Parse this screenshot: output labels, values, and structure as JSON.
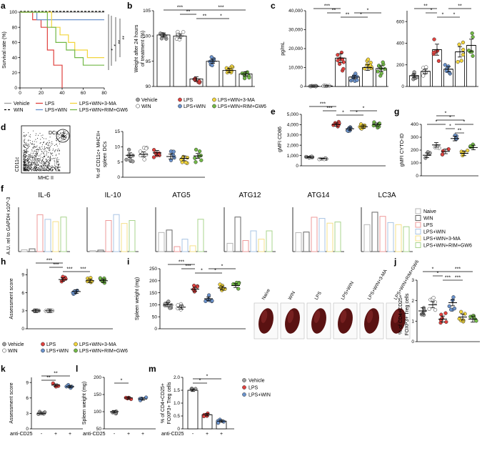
{
  "colors": {
    "vehicle": "#9e9e9e",
    "win": "#ffffff",
    "lps": "#e0413e",
    "lps_win": "#6a92cc",
    "lps_win_3ma": "#f2d53c",
    "lps_win_rim_gw6": "#72b846"
  },
  "panel_labels": [
    "a",
    "b",
    "c",
    "d",
    "e",
    "f",
    "g",
    "h",
    "i",
    "j",
    "k",
    "l",
    "m"
  ],
  "chart_data": [
    {
      "panel": "a",
      "type": "line",
      "ylabel": "Survival rate (%)",
      "yticks": [
        "0",
        "20",
        "40",
        "60",
        "80",
        "100"
      ],
      "xticks": [
        "0",
        "20",
        "40",
        "60",
        "80"
      ],
      "ylim": [
        0,
        100
      ],
      "xlim": [
        0,
        80
      ],
      "series": [
        {
          "name": "Vehicle",
          "x": [
            0,
            80
          ],
          "y": [
            100,
            100
          ]
        },
        {
          "name": "WIN",
          "x": [
            0,
            80
          ],
          "y": [
            100,
            100
          ]
        },
        {
          "name": "LPS",
          "x": [
            0,
            12,
            12,
            20,
            20,
            26,
            26,
            32,
            32,
            40,
            40
          ],
          "y": [
            100,
            100,
            90,
            90,
            80,
            80,
            50,
            50,
            30,
            30,
            0
          ]
        },
        {
          "name": "LPS+WIN",
          "x": [
            0,
            16,
            16,
            80
          ],
          "y": [
            100,
            100,
            90,
            90
          ]
        },
        {
          "name": "LPS+WIN+3-MA",
          "x": [
            0,
            30,
            30,
            38,
            38,
            46,
            46,
            52,
            52,
            64,
            64,
            80
          ],
          "y": [
            100,
            100,
            80,
            80,
            70,
            70,
            60,
            60,
            50,
            50,
            40,
            40
          ]
        },
        {
          "name": "LPS+WIN+RIM+GW6",
          "x": [
            0,
            26,
            26,
            34,
            34,
            44,
            44,
            52,
            52,
            60,
            60,
            80
          ],
          "y": [
            100,
            100,
            80,
            80,
            60,
            60,
            50,
            50,
            40,
            40,
            30,
            30
          ]
        }
      ],
      "significance": [
        "*",
        "*",
        "**",
        "**"
      ],
      "legend": [
        "Vehicle",
        "WIN",
        "LPS",
        "LPS+WIN",
        "LPS+WIN+3-MA",
        "LPS+WIN+RIM+GW6"
      ]
    },
    {
      "panel": "b",
      "type": "bar",
      "ylabel": "Weight after 24 hours of treatment (%)",
      "ylim": [
        90,
        105
      ],
      "yticks": [
        "90",
        "95",
        "100",
        "105"
      ],
      "categories": [
        "Vehicle",
        "WIN",
        "LPS",
        "LPS+WIN",
        "LPS+WIN+3-MA",
        "LPS+WIN+RIM+GW6"
      ],
      "values": [
        100.2,
        100.0,
        91.5,
        95.0,
        93.2,
        92.5
      ],
      "significance": [
        "***",
        "**",
        "**",
        "*",
        "***"
      ],
      "legend": [
        "Vehicle",
        "LPS",
        "LPS+WIN+3-MA",
        "WIN",
        "LPS+WIN",
        "LPS+WIN+RIM+GW6"
      ]
    },
    {
      "panel": "c_left",
      "type": "bar",
      "ylabel": "pg/mL",
      "ylim": [
        0,
        40000
      ],
      "yticks": [
        "0",
        "10,000",
        "20,000",
        "30,000",
        "40,000"
      ],
      "categories": [
        "Vehicle",
        "WIN",
        "LPS",
        "LPS+WIN",
        "LPS+WIN+3-MA",
        "LPS+WIN+RIM+GW6"
      ],
      "values": [
        200,
        300,
        15000,
        5000,
        10000,
        9500
      ],
      "significance": [
        "***",
        "**",
        "**",
        "*",
        "*"
      ]
    },
    {
      "panel": "c_right",
      "type": "bar",
      "ylim": [
        0,
        700
      ],
      "yticks": [
        "0",
        "200",
        "400",
        "600"
      ],
      "categories": [
        "Vehicle",
        "WIN",
        "LPS",
        "LPS+WIN",
        "LPS+WIN+3-MA",
        "LPS+WIN+RIM+GW6"
      ],
      "values": [
        100,
        140,
        340,
        160,
        320,
        380
      ],
      "significance": [
        "**",
        "*",
        "*",
        "*",
        "**"
      ]
    },
    {
      "panel": "d",
      "type": "scatter",
      "ylabel": "% of CD11c+ MHCII+ spleen DCs",
      "ylim": [
        0,
        15
      ],
      "yticks": [
        "0",
        "5",
        "10",
        "15"
      ],
      "categories": [
        "Vehicle",
        "WIN",
        "LPS",
        "LPS+WIN",
        "LPS+WIN+3-MA",
        "LPS+WIN+RIM+GW6"
      ],
      "values": [
        7.2,
        7.5,
        8.0,
        6.8,
        6.2,
        7.0
      ],
      "flow": {
        "gate": "DCs",
        "xlabel": "MHC II",
        "ylabel": "CD11c"
      }
    },
    {
      "panel": "e",
      "type": "scatter",
      "ylabel": "gMFI CD86",
      "ylim": [
        0,
        5000
      ],
      "yticks": [
        "0",
        "1,000",
        "2,000",
        "3,000",
        "4,000",
        "5,000"
      ],
      "categories": [
        "Vehicle",
        "WIN",
        "LPS",
        "LPS+WIN",
        "LPS+WIN+3-MA",
        "LPS+WIN+RIM+GW6"
      ],
      "values": [
        850,
        700,
        4000,
        3600,
        3800,
        4000
      ],
      "significance": [
        "***",
        "***",
        "*",
        "*",
        "*"
      ]
    },
    {
      "panel": "g",
      "type": "scatter",
      "ylabel": "gMFI CYTO-ID",
      "ylim": [
        0,
        400
      ],
      "yticks": [
        "0",
        "100",
        "200",
        "300",
        "400"
      ],
      "categories": [
        "Vehicle",
        "WIN",
        "LPS",
        "LPS+WIN",
        "LPS+WIN+3-MA",
        "LPS+WIN+RIM+GW6"
      ],
      "values": [
        160,
        240,
        190,
        290,
        175,
        220
      ],
      "significance": [
        "*",
        "*",
        "*",
        "*",
        "**",
        "*"
      ]
    },
    {
      "panel": "f",
      "type": "bar",
      "ylabel": "A.U. rel to GAPDH x10^-3",
      "groups": [
        "Naive",
        "WIN",
        "LPS",
        "LPS+WIN",
        "LPS+WIN+3-MA",
        "LPS+WIN+RIM+GW6"
      ],
      "subplots": [
        {
          "title": "IL-6",
          "values": [
            0.4,
            0.6,
            8.0,
            7.0,
            6.5,
            7.5
          ]
        },
        {
          "title": "IL-10",
          "values": [
            0.3,
            0.5,
            10.5,
            12.5,
            9.5,
            10.5
          ]
        },
        {
          "title": "ATG5",
          "values": [
            2.3,
            2.6,
            0.6,
            1.5,
            0.7,
            3.9
          ]
        },
        {
          "title": "ATG12",
          "values": [
            0.6,
            2.5,
            0.8,
            1.5,
            0.9,
            1.5
          ]
        },
        {
          "title": "ATG14",
          "values": [
            3.2,
            3.3,
            5.8,
            5.6,
            4.8,
            5.0
          ]
        },
        {
          "title": "LC3A",
          "values": [
            6.5,
            9.5,
            8.5,
            7.0,
            6.5,
            6.0
          ]
        }
      ],
      "legend": [
        "Naive",
        "WIN",
        "LPS",
        "LPS+WIN",
        "LPS+WIN+3-MA",
        "LPS+WIN+RIM+GW6"
      ]
    },
    {
      "panel": "h",
      "type": "scatter",
      "ylabel": "Assessment score",
      "ylim": [
        0,
        10
      ],
      "yticks": [
        "0",
        "3",
        "6",
        "9"
      ],
      "categories": [
        "Vehicle",
        "WIN",
        "LPS",
        "LPS+WIN",
        "LPS+WIN+3-MA",
        "LPS+WIN+RIM+GW6"
      ],
      "values": [
        3,
        3,
        8.2,
        6.2,
        8.0,
        8.0
      ],
      "significance": [
        "***",
        "***",
        "***",
        "***"
      ],
      "legend": [
        "Vehicle",
        "LPS",
        "LPS+WIN+3-MA",
        "WIN",
        "LPS+WIN",
        "LPS+WIN+RIM+GW6"
      ]
    },
    {
      "panel": "i",
      "type": "scatter",
      "ylabel": "Spleen weight (mg)",
      "ylim": [
        0,
        250
      ],
      "yticks": [
        "0",
        "50",
        "100",
        "150",
        "200",
        "250"
      ],
      "categories": [
        "Vehicle",
        "WIN",
        "LPS",
        "LPS+WIN",
        "LPS+WIN+3-MA",
        "LPS+WIN+RIM+GW6"
      ],
      "values": [
        100,
        90,
        165,
        125,
        170,
        180
      ],
      "significance": [
        "***",
        "***",
        "*",
        "*",
        "*"
      ],
      "photo_labels": [
        "Naive",
        "WIN",
        "LPS",
        "LPS+WIN",
        "LPS+WIN+3-MA",
        "LPS+WIN+RIM+GW6"
      ]
    },
    {
      "panel": "j",
      "type": "scatter",
      "ylabel": "% of CD4+CD25+ FOXP3+ Treg cells",
      "ylim": [
        0,
        3
      ],
      "yticks": [
        "0",
        "1",
        "2",
        "3"
      ],
      "categories": [
        "Vehicle",
        "WIN",
        "LPS",
        "LPS+WIN",
        "LPS+WIN+3-MA",
        "LPS+WIN+RIM+GW6"
      ],
      "values": [
        1.5,
        1.8,
        1.1,
        1.9,
        1.2,
        1.1
      ],
      "significance": [
        "*",
        "*",
        "***",
        "***",
        "***"
      ]
    },
    {
      "panel": "k",
      "type": "scatter",
      "ylabel": "Assessment score",
      "ylim": [
        0,
        10
      ],
      "yticks": [
        "0",
        "3",
        "6",
        "9"
      ],
      "categories": [
        "Vehicle",
        "LPS",
        "LPS+WIN"
      ],
      "values": [
        3,
        8.5,
        8.2
      ],
      "xlabel": "anti-CD25",
      "xsigns": [
        "-",
        "+",
        "+"
      ],
      "significance": [
        "**",
        "**"
      ]
    },
    {
      "panel": "l",
      "type": "scatter",
      "ylabel": "Spleen weight (mg)",
      "ylim": [
        50,
        200
      ],
      "yticks": [
        "50",
        "100",
        "150",
        "200"
      ],
      "categories": [
        "Vehicle",
        "LPS",
        "LPS+WIN"
      ],
      "values": [
        100,
        140,
        137
      ],
      "xlabel": "anti-CD25",
      "xsigns": [
        "-",
        "+",
        "+"
      ],
      "significance": [
        "*"
      ]
    },
    {
      "panel": "m",
      "type": "bar",
      "ylabel": "% of CD4+CD25+ FOXP3+ Treg cells",
      "ylim": [
        0,
        2
      ],
      "yticks": [
        "0",
        "0.5",
        "1.0",
        "1.5",
        "2.0"
      ],
      "categories": [
        "Vehicle",
        "LPS",
        "LPS+WIN"
      ],
      "values": [
        1.5,
        0.55,
        0.3
      ],
      "xlabel": "anti-CD25",
      "xsigns": [
        "-",
        "+",
        "+"
      ],
      "significance": [
        "*",
        "*"
      ],
      "legend": [
        "Vehicle",
        "LPS",
        "LPS+WIN"
      ]
    }
  ]
}
